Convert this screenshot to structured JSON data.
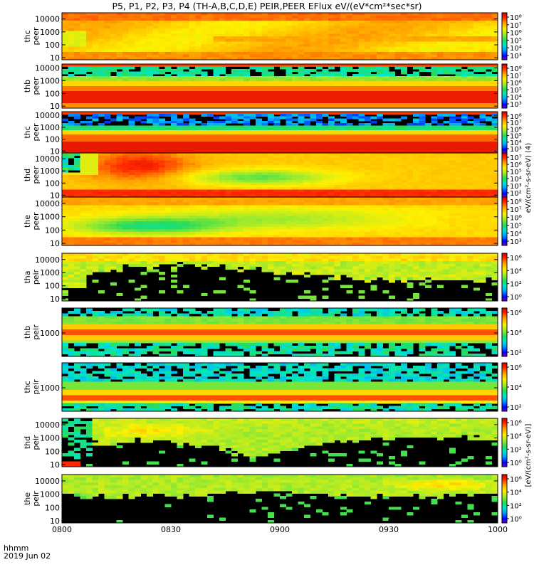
{
  "title": "P5, P1, P2, P3, P4 (TH-A,B,C,D,E) PEIR,PEER EFlux eV/(eV*cm²*sec*sr)",
  "footer": {
    "time_unit": "hhmm",
    "date": "2019 Jun 02"
  },
  "chart_data": {
    "type": "heatmap",
    "x_tick_labels": [
      "0800",
      "0830",
      "0900",
      "0930",
      "1000"
    ],
    "x_ticks_min": [
      0,
      30,
      60,
      90,
      120
    ],
    "xlim_min": [
      0,
      120
    ],
    "colorbar_label_top": "eV/(cm²-s-sr-eV) (4)",
    "colorbar_label_bottom": "[eV/(cm²-s-sr-eV)]",
    "panels": [
      {
        "ylabel": [
          "thc",
          "peer"
        ],
        "yticks": [
          "10000",
          "1000",
          "100",
          "10"
        ],
        "ytick_vals": [
          10000,
          1000,
          100,
          10
        ],
        "ylim": [
          7,
          30000
        ],
        "cb_ticks": [
          "10⁸",
          "10⁷",
          "10⁶",
          "10⁵",
          "10⁴",
          "10³"
        ],
        "cb_range": [
          2.5,
          8.5
        ],
        "pattern": "thc-peer"
      },
      {
        "ylabel": [
          "thb",
          "peer"
        ],
        "yticks": [
          "10000",
          "1000",
          "100",
          "10"
        ],
        "ytick_vals": [
          10000,
          1000,
          100,
          10
        ],
        "ylim": [
          7,
          20000
        ],
        "cb_ticks": [
          "10⁸",
          "10⁷",
          "10⁶",
          "10⁵",
          "10⁴",
          "10³"
        ],
        "cb_range": [
          2.5,
          8.5
        ],
        "pattern": "thb-peer"
      },
      {
        "ylabel": [
          "thc",
          "peer"
        ],
        "yticks": [
          "10000",
          "1000",
          "100",
          "10"
        ],
        "ytick_vals": [
          10000,
          1000,
          100,
          10
        ],
        "ylim": [
          7,
          20000
        ],
        "cb_ticks": [
          "10⁸",
          "10⁷",
          "10⁶",
          "10⁵",
          "10⁴",
          "10³"
        ],
        "cb_range": [
          2.5,
          8.5
        ],
        "pattern": "thc2-peer"
      },
      {
        "ylabel": [
          "thd",
          "peer"
        ],
        "yticks": [
          "10000",
          "1000",
          "100",
          "10"
        ],
        "ytick_vals": [
          10000,
          1000,
          100,
          10
        ],
        "ylim": [
          7,
          30000
        ],
        "cb_ticks": [
          "10⁷",
          "10⁶",
          "10⁵",
          "10⁴",
          "10³",
          "10²"
        ],
        "cb_range": [
          1.8,
          7.5
        ],
        "pattern": "thd-peer"
      },
      {
        "ylabel": [
          "the",
          "peer"
        ],
        "yticks": [
          "10000",
          "1000",
          "100",
          "10"
        ],
        "ytick_vals": [
          10000,
          1000,
          100,
          10
        ],
        "ylim": [
          7,
          30000
        ],
        "cb_ticks": [
          "10⁸",
          "10⁷",
          "10⁶",
          "10⁵",
          "10⁴",
          "10³"
        ],
        "cb_range": [
          2.5,
          8.5
        ],
        "pattern": "the-peer"
      },
      {
        "ylabel": [
          "tha",
          "peir"
        ],
        "yticks": [
          "10000",
          "1000",
          "100",
          "10"
        ],
        "ytick_vals": [
          10000,
          1000,
          100,
          10
        ],
        "ylim": [
          7,
          30000
        ],
        "cb_ticks": [
          "10⁶",
          "10⁴",
          "10²",
          "10⁰"
        ],
        "cb_range": [
          -0.5,
          7
        ],
        "pattern": "tha-peir"
      },
      {
        "ylabel": [
          "thb",
          "peir"
        ],
        "yticks": [
          "1000"
        ],
        "ytick_vals": [
          1000
        ],
        "ylim": [
          60,
          20000
        ],
        "cb_ticks": [
          "10⁶",
          "10⁴",
          "10²"
        ],
        "cb_range": [
          1,
          7
        ],
        "pattern": "thb-peir"
      },
      {
        "ylabel": [
          "thc",
          "peir"
        ],
        "yticks": [
          "1000"
        ],
        "ytick_vals": [
          1000
        ],
        "ylim": [
          60,
          20000
        ],
        "cb_ticks": [
          "10⁶",
          "10⁴",
          "10²"
        ],
        "cb_range": [
          1,
          7
        ],
        "pattern": "thc-peir"
      },
      {
        "ylabel": [
          "thd",
          "peir"
        ],
        "yticks": [
          "10000",
          "1000",
          "100",
          "10"
        ],
        "ytick_vals": [
          10000,
          1000,
          100,
          10
        ],
        "ylim": [
          7,
          30000
        ],
        "cb_ticks": [
          "10⁶",
          "10⁴",
          "10²",
          "10⁰"
        ],
        "cb_range": [
          -0.5,
          7
        ],
        "pattern": "thd-peir"
      },
      {
        "ylabel": [
          "the",
          "peir"
        ],
        "yticks": [
          "10000",
          "1000",
          "100",
          "10"
        ],
        "ytick_vals": [
          10000,
          1000,
          100,
          10
        ],
        "ylim": [
          7,
          30000
        ],
        "cb_ticks": [
          "10⁶",
          "10⁴",
          "10²",
          "10⁰"
        ],
        "cb_range": [
          -0.5,
          7
        ],
        "pattern": "the-peir"
      }
    ]
  }
}
